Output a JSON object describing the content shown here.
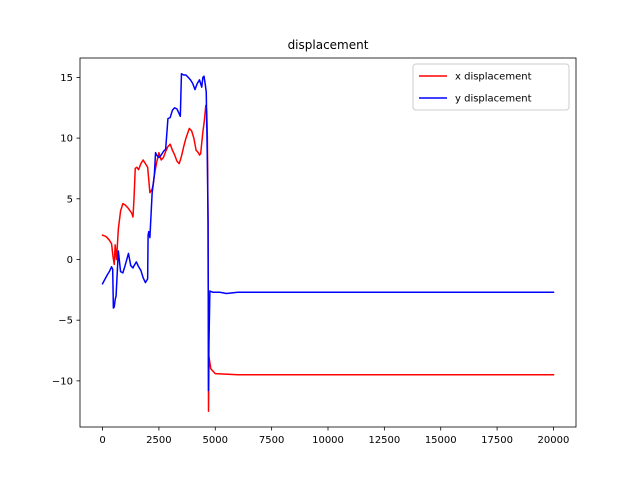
{
  "chart_data": {
    "type": "line",
    "title": "displacement",
    "xlabel": "",
    "ylabel": "",
    "xlim": [
      -1000,
      21000
    ],
    "ylim": [
      -13.8,
      16.6
    ],
    "xticks": [
      0,
      2500,
      5000,
      7500,
      10000,
      12500,
      15000,
      17500,
      20000
    ],
    "yticks": [
      -10,
      -5,
      0,
      5,
      10,
      15
    ],
    "grid": false,
    "legend_position": "upper right",
    "series": [
      {
        "name": "x displacement",
        "color": "#ff0000",
        "points": [
          [
            0,
            2.0
          ],
          [
            150,
            1.9
          ],
          [
            300,
            1.6
          ],
          [
            400,
            1.3
          ],
          [
            460,
            0.3
          ],
          [
            520,
            -0.4
          ],
          [
            560,
            1.2
          ],
          [
            620,
            0.0
          ],
          [
            700,
            2.5
          ],
          [
            800,
            4.0
          ],
          [
            900,
            4.6
          ],
          [
            1000,
            4.5
          ],
          [
            1150,
            4.2
          ],
          [
            1300,
            3.8
          ],
          [
            1350,
            3.5
          ],
          [
            1400,
            5.2
          ],
          [
            1450,
            7.5
          ],
          [
            1520,
            7.6
          ],
          [
            1600,
            7.4
          ],
          [
            1700,
            7.9
          ],
          [
            1800,
            8.2
          ],
          [
            1900,
            7.9
          ],
          [
            2000,
            7.6
          ],
          [
            2100,
            5.5
          ],
          [
            2200,
            5.8
          ],
          [
            2250,
            6.2
          ],
          [
            2300,
            7.0
          ],
          [
            2400,
            8.0
          ],
          [
            2500,
            8.8
          ],
          [
            2600,
            8.2
          ],
          [
            2700,
            8.4
          ],
          [
            2800,
            8.9
          ],
          [
            2900,
            9.3
          ],
          [
            3000,
            9.5
          ],
          [
            3100,
            9.0
          ],
          [
            3200,
            8.6
          ],
          [
            3300,
            8.1
          ],
          [
            3400,
            7.9
          ],
          [
            3500,
            8.5
          ],
          [
            3600,
            9.3
          ],
          [
            3700,
            10.0
          ],
          [
            3850,
            10.8
          ],
          [
            3950,
            10.6
          ],
          [
            4050,
            10.0
          ],
          [
            4150,
            9.0
          ],
          [
            4250,
            8.8
          ],
          [
            4300,
            8.6
          ],
          [
            4350,
            8.7
          ],
          [
            4450,
            10.5
          ],
          [
            4520,
            11.5
          ],
          [
            4580,
            12.7
          ],
          [
            4620,
            12.2
          ],
          [
            4650,
            10.0
          ],
          [
            4680,
            3.0
          ],
          [
            4700,
            -12.5
          ],
          [
            4720,
            -8.0
          ],
          [
            4800,
            -9.0
          ],
          [
            5000,
            -9.4
          ],
          [
            6000,
            -9.5
          ],
          [
            8000,
            -9.5
          ],
          [
            12000,
            -9.5
          ],
          [
            16000,
            -9.5
          ],
          [
            20000,
            -9.5
          ]
        ]
      },
      {
        "name": "y displacement",
        "color": "#0000ff",
        "points": [
          [
            0,
            -2.0
          ],
          [
            200,
            -1.3
          ],
          [
            300,
            -1.0
          ],
          [
            400,
            -0.6
          ],
          [
            450,
            -0.8
          ],
          [
            480,
            -4.0
          ],
          [
            520,
            -3.9
          ],
          [
            560,
            -3.3
          ],
          [
            600,
            -3.0
          ],
          [
            700,
            0.7
          ],
          [
            800,
            -1.0
          ],
          [
            900,
            -1.1
          ],
          [
            1000,
            -0.5
          ],
          [
            1150,
            0.5
          ],
          [
            1250,
            -0.5
          ],
          [
            1350,
            -0.7
          ],
          [
            1400,
            -0.5
          ],
          [
            1500,
            -0.2
          ],
          [
            1600,
            -0.6
          ],
          [
            1700,
            -0.9
          ],
          [
            1800,
            -1.5
          ],
          [
            1900,
            -1.9
          ],
          [
            2000,
            -1.6
          ],
          [
            2020,
            2.0
          ],
          [
            2050,
            2.3
          ],
          [
            2100,
            1.8
          ],
          [
            2200,
            5.5
          ],
          [
            2300,
            7.0
          ],
          [
            2350,
            8.8
          ],
          [
            2400,
            8.6
          ],
          [
            2500,
            8.4
          ],
          [
            2600,
            8.6
          ],
          [
            2700,
            8.9
          ],
          [
            2800,
            9.1
          ],
          [
            2900,
            11.6
          ],
          [
            3000,
            11.7
          ],
          [
            3100,
            12.3
          ],
          [
            3200,
            12.5
          ],
          [
            3300,
            12.4
          ],
          [
            3400,
            12.0
          ],
          [
            3450,
            11.8
          ],
          [
            3500,
            15.3
          ],
          [
            3600,
            15.2
          ],
          [
            3700,
            15.2
          ],
          [
            3800,
            15.0
          ],
          [
            3900,
            14.8
          ],
          [
            4000,
            14.5
          ],
          [
            4100,
            14.0
          ],
          [
            4200,
            14.5
          ],
          [
            4300,
            14.8
          ],
          [
            4400,
            14.2
          ],
          [
            4450,
            15.0
          ],
          [
            4500,
            15.1
          ],
          [
            4550,
            14.5
          ],
          [
            4600,
            13.8
          ],
          [
            4650,
            8.0
          ],
          [
            4680,
            3.0
          ],
          [
            4700,
            -10.8
          ],
          [
            4720,
            -7.0
          ],
          [
            4760,
            -2.6
          ],
          [
            4900,
            -2.7
          ],
          [
            5200,
            -2.7
          ],
          [
            5500,
            -2.8
          ],
          [
            6000,
            -2.7
          ],
          [
            7000,
            -2.7
          ],
          [
            10000,
            -2.7
          ],
          [
            15000,
            -2.7
          ],
          [
            20000,
            -2.7
          ]
        ]
      }
    ]
  }
}
